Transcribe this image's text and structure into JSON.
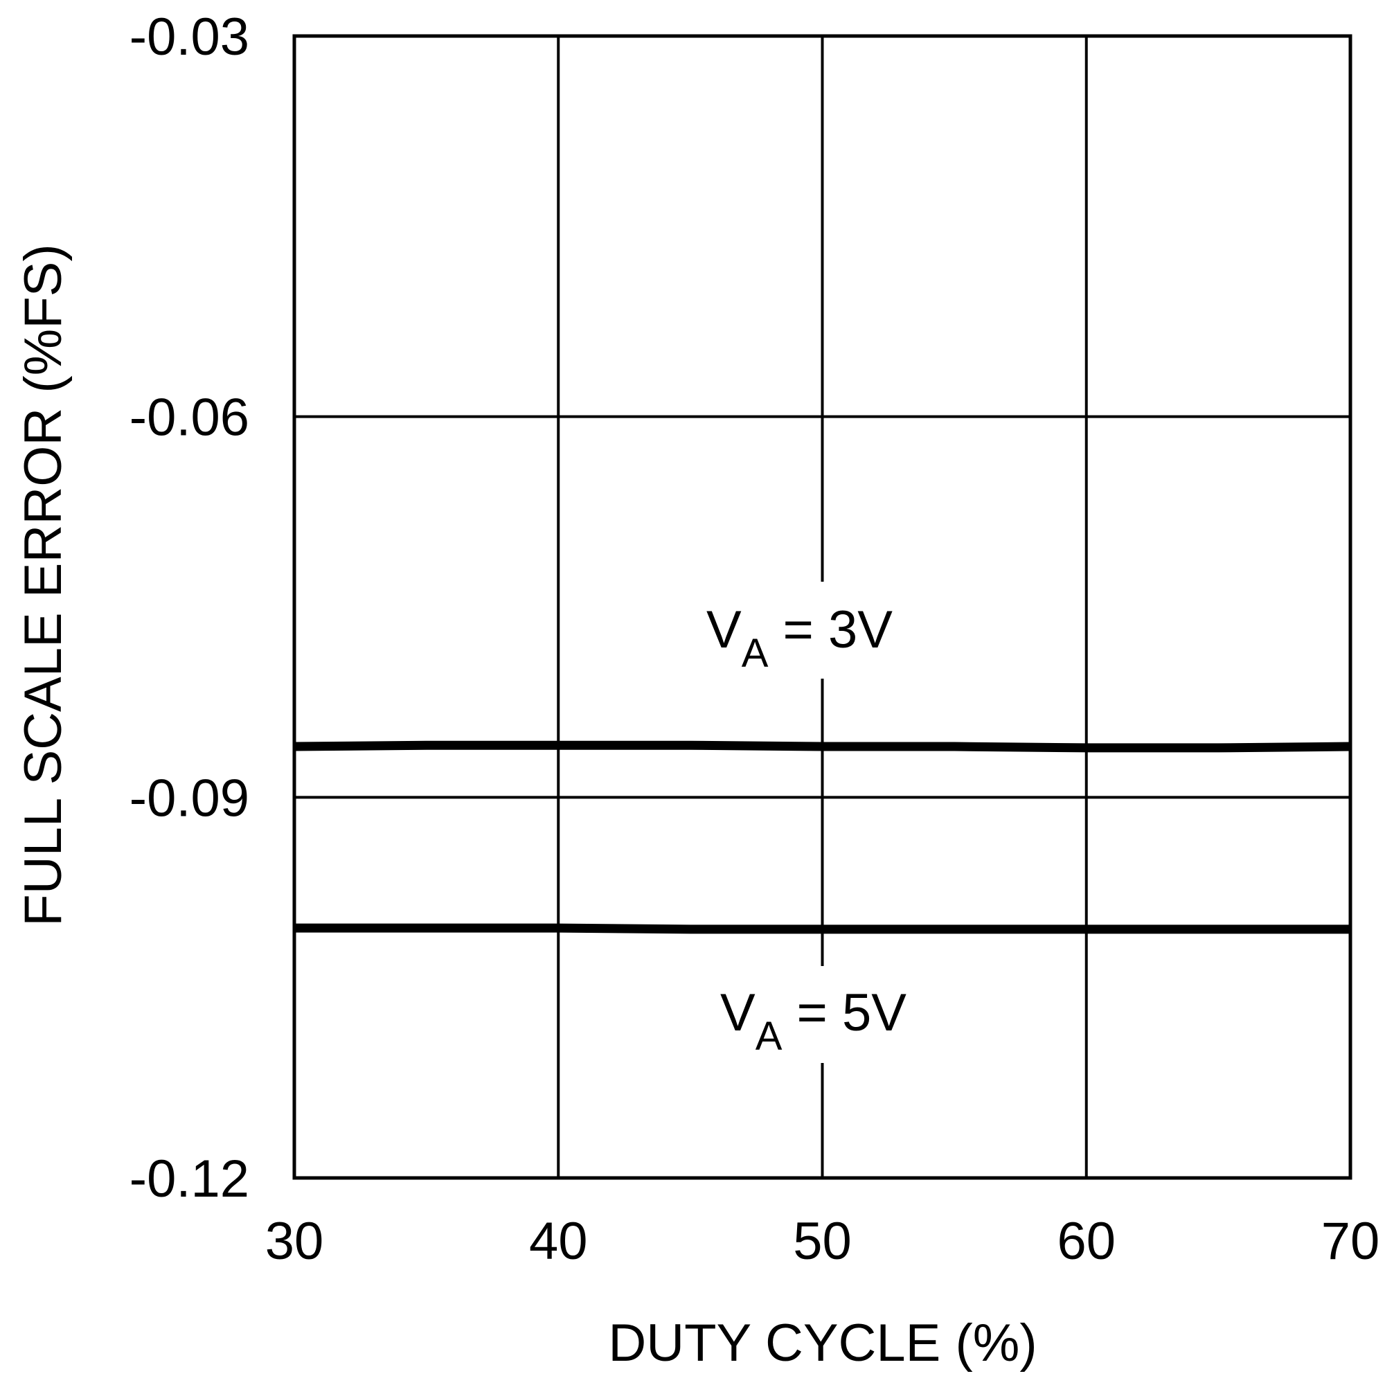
{
  "chart_data": {
    "type": "line",
    "xlabel": "DUTY CYCLE (%)",
    "ylabel": "FULL SCALE ERROR (%FS)",
    "xlim": [
      30,
      70
    ],
    "ylim": [
      -0.12,
      -0.03
    ],
    "x_ticks": [
      "30",
      "40",
      "50",
      "60",
      "70"
    ],
    "y_ticks": [
      "-0.03",
      "-0.06",
      "-0.09",
      "-0.12"
    ],
    "grid": true,
    "series": [
      {
        "name": "VA = 3V",
        "x": [
          30,
          35,
          40,
          45,
          50,
          55,
          60,
          65,
          70
        ],
        "y": [
          -0.086,
          -0.0859,
          -0.0859,
          -0.0859,
          -0.086,
          -0.086,
          -0.0861,
          -0.0861,
          -0.086
        ]
      },
      {
        "name": "VA = 5V",
        "x": [
          30,
          35,
          40,
          45,
          50,
          55,
          60,
          65,
          70
        ],
        "y": [
          -0.1003,
          -0.1003,
          -0.1003,
          -0.1004,
          -0.1004,
          -0.1004,
          -0.1004,
          -0.1004,
          -0.1004
        ]
      }
    ],
    "annotations": [
      {
        "main": "V",
        "sub": "A",
        "rest": " = 3V"
      },
      {
        "main": "V",
        "sub": "A",
        "rest": " = 5V"
      }
    ]
  }
}
